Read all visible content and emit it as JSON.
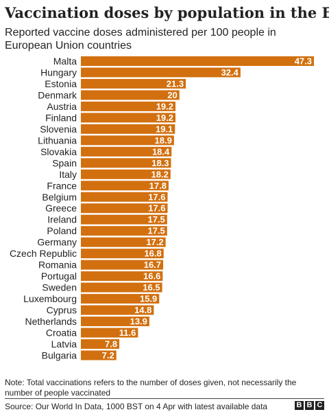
{
  "chart_data": {
    "type": "bar",
    "orientation": "horizontal",
    "title": "Vaccination doses by population in the EU",
    "subtitle": "Reported vaccine doses administered per 100 people in European Union countries",
    "categories": [
      "Malta",
      "Hungary",
      "Estonia",
      "Denmark",
      "Austria",
      "Finland",
      "Slovenia",
      "Lithuania",
      "Slovakia",
      "Spain",
      "Italy",
      "France",
      "Belgium",
      "Greece",
      "Ireland",
      "Poland",
      "Germany",
      "Czech Republic",
      "Romania",
      "Portugal",
      "Sweden",
      "Luxembourg",
      "Cyprus",
      "Netherlands",
      "Croatia",
      "Latvia",
      "Bulgaria"
    ],
    "values": [
      47.3,
      32.4,
      21.3,
      20,
      19.2,
      19.2,
      19.1,
      18.9,
      18.4,
      18.3,
      18.2,
      17.8,
      17.6,
      17.6,
      17.5,
      17.5,
      17.2,
      16.8,
      16.7,
      16.6,
      16.5,
      15.9,
      14.8,
      13.9,
      11.6,
      7.8,
      7.2
    ],
    "value_labels": [
      "47.3",
      "32.4",
      "21.3",
      "20",
      "19.2",
      "19.2",
      "19.1",
      "18.9",
      "18.4",
      "18.3",
      "18.2",
      "17.8",
      "17.6",
      "17.6",
      "17.5",
      "17.5",
      "17.2",
      "16.8",
      "16.7",
      "16.6",
      "16.5",
      "15.9",
      "14.8",
      "13.9",
      "11.6",
      "7.8",
      "7.2"
    ],
    "xlim": [
      0,
      47.3
    ],
    "grid": false,
    "legend": "none",
    "bar_color": "#d2700f"
  },
  "footer": {
    "note": "Note: Total vaccinations refers to the number of doses given, not necessarily the number of people vaccinated",
    "source": "Source: Our World In Data, 1000 BST on 4 Apr with latest available data",
    "logo_letters": [
      "B",
      "B",
      "C"
    ]
  }
}
